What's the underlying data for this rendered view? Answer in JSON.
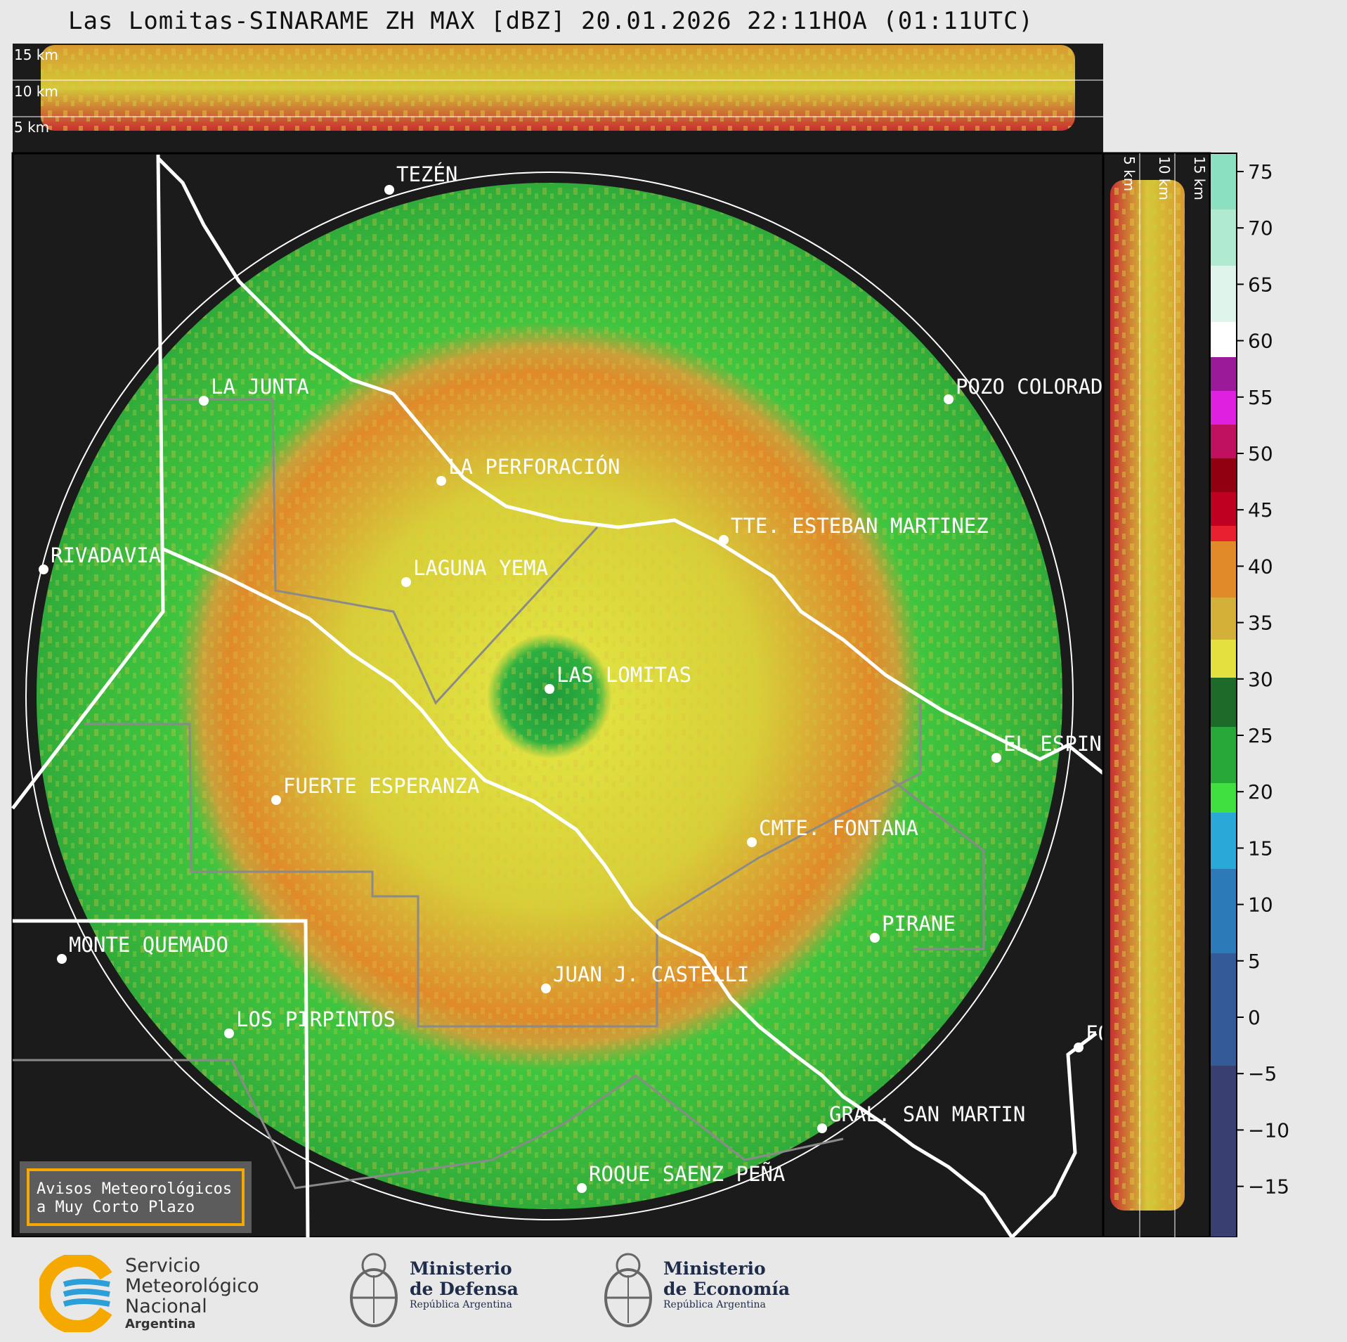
{
  "title": "Las Lomitas-SINARAME ZH MAX [dBZ] 20.01.2026 22:11HOA (01:11UTC)",
  "top_panel": {
    "labels": [
      "15 km",
      "10 km",
      "5 km"
    ]
  },
  "side_panel": {
    "labels": [
      "5 km",
      "10 km",
      "15 km"
    ]
  },
  "places": [
    {
      "name": "TEZÉN"
    },
    {
      "name": "LA JUNTA"
    },
    {
      "name": "POZO COLORADO"
    },
    {
      "name": "LA PERFORACIÓN"
    },
    {
      "name": "TTE. ESTEBAN MARTINEZ"
    },
    {
      "name": "RIVADAVIA"
    },
    {
      "name": "LAGUNA YEMA"
    },
    {
      "name": "LAS LOMITAS"
    },
    {
      "name": "EL ESPINILLO"
    },
    {
      "name": "FUERTE ESPERANZA"
    },
    {
      "name": "CMTE. FONTANA"
    },
    {
      "name": "PIRANE"
    },
    {
      "name": "MONTE QUEMADO"
    },
    {
      "name": "JUAN J. CASTELLI"
    },
    {
      "name": "LOS PIRPINTOS"
    },
    {
      "name": "GRAL. SAN MARTIN"
    },
    {
      "name": "ROQUE SAENZ PEÑA"
    },
    {
      "name": "FORMOSA"
    }
  ],
  "colorbar": {
    "ticks": [
      "75",
      "70",
      "65",
      "60",
      "55",
      "50",
      "45",
      "40",
      "35",
      "30",
      "25",
      "20",
      "15",
      "10",
      "5",
      "0",
      "−5",
      "−10",
      "−15"
    ]
  },
  "alert_box": {
    "line1": "Avisos Meteorológicos",
    "line2": "a Muy Corto Plazo"
  },
  "footer": {
    "smn_line1": "Servicio",
    "smn_line2": "Meteorológico",
    "smn_line3": "Nacional",
    "smn_line4": "Argentina",
    "def_line1": "Ministerio",
    "def_line2": "de Defensa",
    "def_line3": "República Argentina",
    "eco_line1": "Ministerio",
    "eco_line2": "de Economía",
    "eco_line3": "República Argentina"
  },
  "colors": {
    "background": "#e8e8e8",
    "map_bg": "#1b1b1b",
    "border_white": "#ffffff",
    "smn_orange": "#f5a800",
    "smn_blue": "#2a9fd8"
  }
}
